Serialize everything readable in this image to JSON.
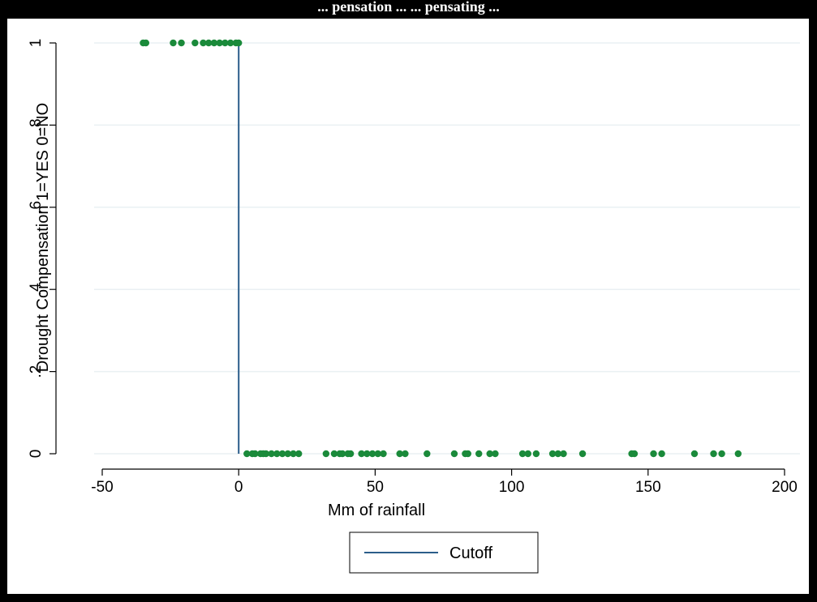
{
  "caption": "... pensation ... ... pensating ...",
  "chart_data": {
    "type": "scatter",
    "title": "",
    "xlabel": "Mm of rainfall",
    "ylabel": "Drought Compensation 1=YES 0=NO",
    "xlim": [
      -50,
      200
    ],
    "ylim": [
      0,
      1
    ],
    "x_ticks": [
      -50,
      0,
      50,
      100,
      150,
      200
    ],
    "x_tick_labels": [
      "-50",
      "0",
      "50",
      "100",
      "150",
      "200"
    ],
    "y_ticks": [
      0,
      0.2,
      0.4,
      0.6,
      0.8,
      1
    ],
    "y_tick_labels": [
      "0",
      ".2",
      ".4",
      ".6",
      ".8",
      "1"
    ],
    "grid": true,
    "legend_position": "bottom-center",
    "marker_color": "#1a8a3a",
    "line_color": "#2b5d8a",
    "series": [
      {
        "kind": "points",
        "x": [
          -35,
          -34,
          -24,
          -21,
          -16,
          -13,
          -11,
          -9,
          -7,
          -5,
          -3,
          -1,
          0
        ],
        "y": [
          1,
          1,
          1,
          1,
          1,
          1,
          1,
          1,
          1,
          1,
          1,
          1,
          1
        ]
      },
      {
        "kind": "points",
        "x": [
          3,
          5,
          6,
          8,
          9,
          10,
          12,
          14,
          16,
          18,
          20,
          22,
          32,
          35,
          37,
          38,
          40,
          41,
          45,
          47,
          49,
          51,
          53,
          59,
          61,
          69,
          79,
          83,
          84,
          88,
          92,
          94,
          104,
          106,
          109,
          115,
          117,
          119,
          126,
          144,
          145,
          152,
          155,
          167,
          174,
          177,
          183
        ],
        "y": [
          0,
          0,
          0,
          0,
          0,
          0,
          0,
          0,
          0,
          0,
          0,
          0,
          0,
          0,
          0,
          0,
          0,
          0,
          0,
          0,
          0,
          0,
          0,
          0,
          0,
          0,
          0,
          0,
          0,
          0,
          0,
          0,
          0,
          0,
          0,
          0,
          0,
          0,
          0,
          0,
          0,
          0,
          0,
          0,
          0,
          0,
          0
        ]
      },
      {
        "kind": "line",
        "name": "Cutoff",
        "x": [
          0,
          0
        ],
        "y": [
          1,
          0
        ]
      }
    ]
  }
}
